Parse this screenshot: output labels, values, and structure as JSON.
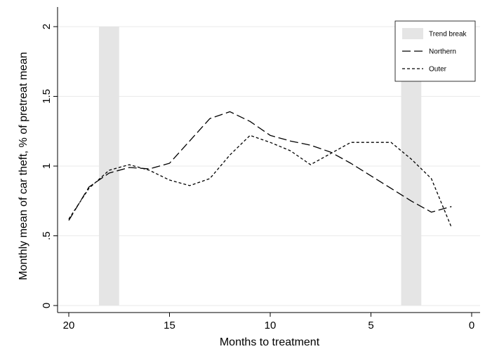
{
  "chart_data": {
    "type": "line",
    "title": "",
    "xlabel": "Months to treatment",
    "ylabel": "Monthly mean of car theft, % of pretreat mean",
    "xlim": [
      21,
      0
    ],
    "ylim": [
      0,
      2
    ],
    "x_reversed": true,
    "x_ticks": [
      20,
      15,
      10,
      5,
      0
    ],
    "y_ticks": [
      0,
      0.5,
      1,
      1.5,
      2
    ],
    "y_tick_labels": [
      "0",
      ".5",
      "1",
      "1.5",
      "2"
    ],
    "grid": true,
    "legend_position": "top-right",
    "shaded_bands": [
      {
        "name": "Trend break",
        "x_from": 18.5,
        "x_to": 17.5,
        "color": "#e5e5e5"
      },
      {
        "name": "Trend break",
        "x_from": 3.5,
        "x_to": 2.5,
        "color": "#e5e5e5"
      }
    ],
    "series": [
      {
        "name": "Northern",
        "style": "long-dash",
        "x": [
          20,
          19,
          18,
          17,
          16,
          15,
          14,
          13,
          12,
          11,
          10,
          9,
          8,
          7,
          6,
          5,
          4,
          3,
          2,
          1
        ],
        "values": [
          0.61,
          0.85,
          0.95,
          0.99,
          0.98,
          1.02,
          1.18,
          1.34,
          1.39,
          1.32,
          1.22,
          1.18,
          1.15,
          1.1,
          1.02,
          0.93,
          0.84,
          0.75,
          0.67,
          0.71
        ]
      },
      {
        "name": "Outer",
        "style": "short-dash",
        "x": [
          20,
          19,
          18,
          17,
          16,
          15,
          14,
          13,
          12,
          11,
          10,
          9,
          8,
          7,
          6,
          5,
          4,
          3,
          2,
          1
        ],
        "values": [
          0.62,
          0.84,
          0.97,
          1.01,
          0.97,
          0.9,
          0.86,
          0.91,
          1.08,
          1.22,
          1.17,
          1.11,
          1.01,
          1.09,
          1.17,
          1.17,
          1.17,
          1.05,
          0.91,
          0.56
        ]
      }
    ]
  },
  "legend": {
    "items": [
      {
        "label": "Trend break",
        "kind": "band",
        "color": "#e5e5e5"
      },
      {
        "label": "Northern",
        "kind": "long-dash"
      },
      {
        "label": "Outer",
        "kind": "short-dash"
      }
    ]
  }
}
